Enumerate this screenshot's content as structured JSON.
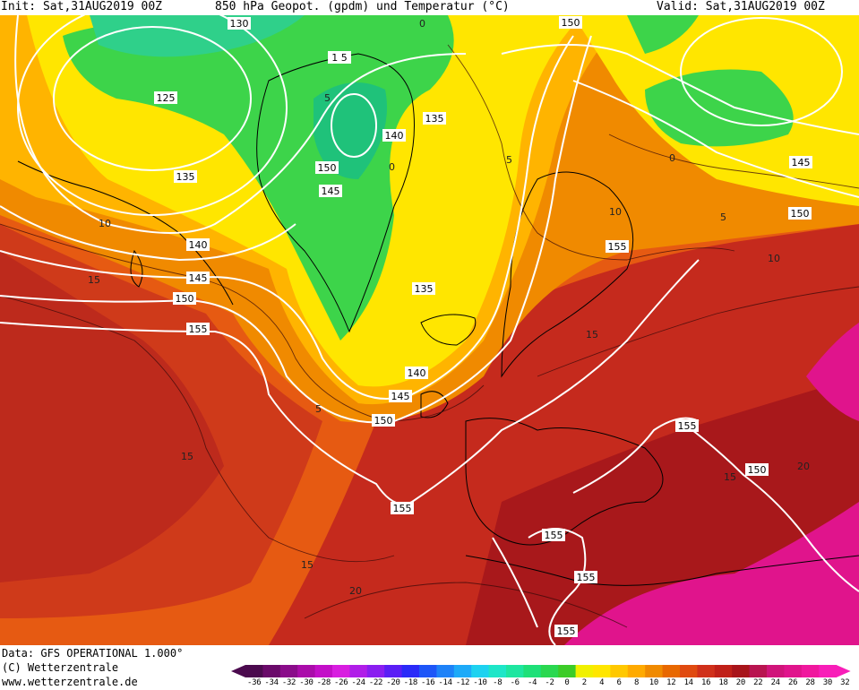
{
  "header": {
    "init": "Init: Sat,31AUG2019 00Z",
    "title": "850 hPa Geopot. (gpdm) und Temperatur (°C)",
    "valid": "Valid: Sat,31AUG2019 00Z"
  },
  "footer": {
    "data_source": "Data: GFS OPERATIONAL 1.000°",
    "copyright": "(C) Wetterzentrale",
    "url": "www.wetterzentrale.de"
  },
  "colors": {
    "green": "#3dd44a",
    "yellow": "#ffe600",
    "light_orange": "#ffb400",
    "orange": "#f08a00",
    "dark_orange": "#e45a10",
    "red": "#c82a1e",
    "dark_red": "#a5171a",
    "magenta": "#e0148c"
  },
  "scale": {
    "ticks": [
      "-36",
      "-34",
      "-32",
      "-30",
      "-28",
      "-26",
      "-24",
      "-22",
      "-20",
      "-18",
      "-16",
      "-14",
      "-12",
      "-10",
      "-8",
      "-6",
      "-4",
      "-2",
      "0",
      "2",
      "4",
      "6",
      "8",
      "10",
      "12",
      "14",
      "16",
      "18",
      "20",
      "22",
      "24",
      "26",
      "28",
      "30",
      "32"
    ]
  },
  "height_labels": [
    "130",
    "125",
    "135",
    "140",
    "145",
    "150",
    "155",
    "140",
    "150",
    "145",
    "135",
    "140",
    "145",
    "150",
    "155",
    "155",
    "155",
    "155",
    "155",
    "150",
    "150",
    "145",
    "150",
    "135",
    "1 5"
  ],
  "temp_labels": [
    "10",
    "15",
    "5",
    "5",
    "0",
    "0",
    "5",
    "10",
    "10",
    "15",
    "15",
    "15",
    "20",
    "15",
    "20",
    "5",
    "0"
  ]
}
